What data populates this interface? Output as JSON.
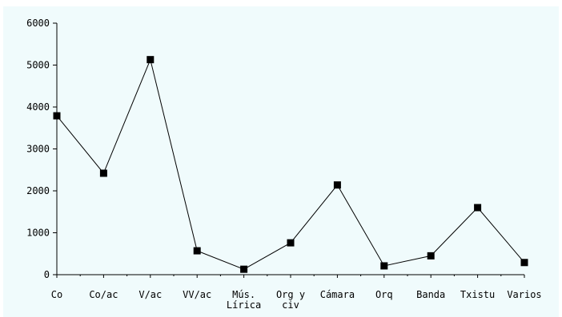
{
  "chart_data": {
    "type": "line",
    "title": "",
    "xlabel": "",
    "ylabel": "",
    "categories": [
      [
        "Co"
      ],
      [
        "Co/ac"
      ],
      [
        "V/ac"
      ],
      [
        "VV/ac"
      ],
      [
        "Mús.",
        "Lírica"
      ],
      [
        "Org y",
        "civ"
      ],
      [
        "Cámara"
      ],
      [
        "Orq"
      ],
      [
        "Banda"
      ],
      [
        "Txistu"
      ],
      [
        "Varios"
      ]
    ],
    "values": [
      3790,
      2420,
      5130,
      570,
      130,
      760,
      2140,
      210,
      450,
      1600,
      290
    ],
    "ylim": [
      0,
      6000
    ],
    "yticks": [
      0,
      1000,
      2000,
      3000,
      4000,
      5000,
      6000
    ],
    "ytick_labels": [
      "0",
      "1000",
      "2000",
      "3000",
      "4000",
      "5000",
      "6000"
    ],
    "grid": false,
    "legend": "none",
    "colors": {
      "line": "#000000",
      "marker": "#000000",
      "background": "#f0fbfc"
    }
  }
}
